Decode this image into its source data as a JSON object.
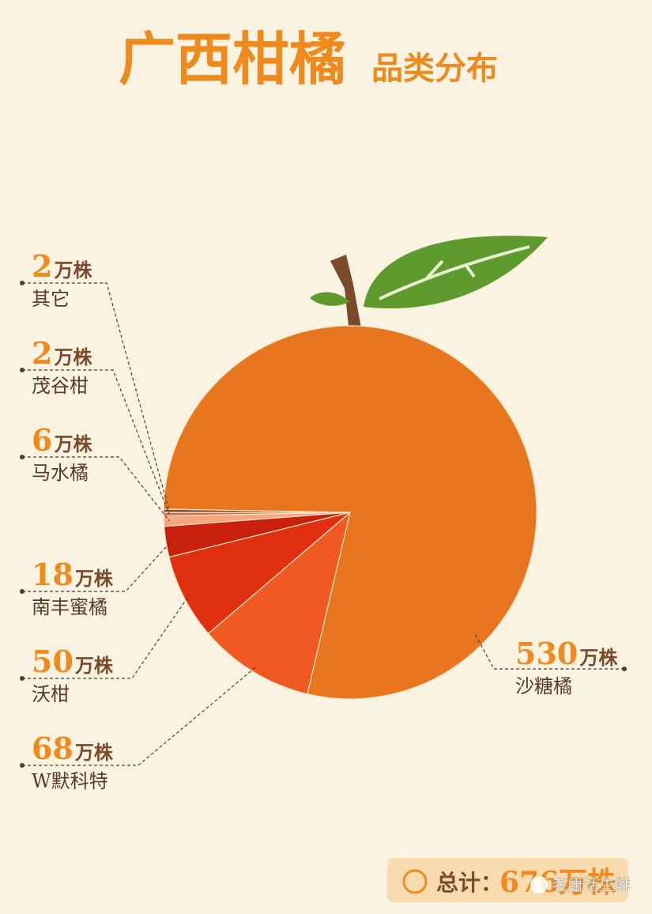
{
  "chart_data": {
    "type": "pie",
    "title": "广西柑橘",
    "subtitle": "品类分布",
    "categories": [
      "其它",
      "茂谷柑",
      "马水橘",
      "南丰蜜橘",
      "沃柑",
      "W默科特",
      "沙糖橘"
    ],
    "values": [
      2,
      2,
      6,
      18,
      50,
      68,
      530
    ],
    "value_labels": [
      "2万株",
      "2万株",
      "6万株",
      "18万株",
      "50万株",
      "68万株",
      "530万株"
    ],
    "colors": [
      "#8b4a2c",
      "#d0704a",
      "#f6a57f",
      "#c8200c",
      "#e1300f",
      "#f05a22",
      "#e8761f"
    ],
    "total_label": "总计：",
    "total": "676万株",
    "watermark": "老唐话生鲜"
  }
}
